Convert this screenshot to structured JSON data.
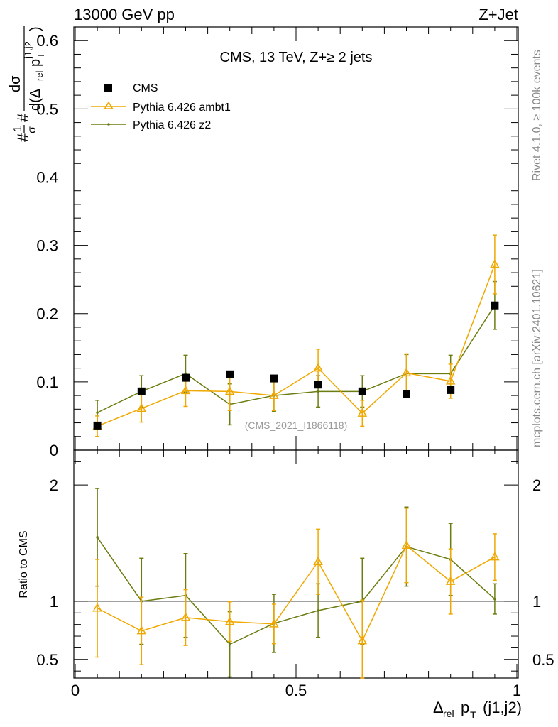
{
  "header": {
    "left": "13000 GeV pp",
    "right": "Z+Jet"
  },
  "side_labels": {
    "rivet": "Rivet 4.1.0, ≥ 100k events",
    "mcplots": "mcplots.cern.ch [arXiv:2401.10621]"
  },
  "chart_data": {
    "type": "scatter",
    "title": "CMS, 13 TeV, Z+≥ 2 jets",
    "watermark": "(CMS_2021_I1866118)",
    "xlabel": "Δrel pT (j1,j2)",
    "xlabel_parts": {
      "delta": "Δ",
      "rel": "rel",
      "p": "p",
      "T": "T",
      "suffix": "(j1,j2)"
    },
    "ylabel": "1/σ dσ/d(Δrel pT j1,j2)",
    "ylabel_parts": {
      "hash": "#",
      "one": "1",
      "sigma": "σ",
      "dsigma": "dσ",
      "denom": "d(Δ",
      "rel": "rel",
      "p": "p",
      "T": "T",
      "sup": "j1,j2",
      "close": ")"
    },
    "ratio_ylabel": "Ratio to CMS",
    "xlim": [
      0,
      1
    ],
    "ylim": [
      0,
      0.62
    ],
    "ratio_ylim": [
      0.34,
      2.3
    ],
    "x_ticks": [
      {
        "v": 0,
        "label": "0"
      },
      {
        "v": 0.5,
        "label": "0.5"
      },
      {
        "v": 1,
        "label": "1"
      }
    ],
    "y_ticks": [
      {
        "v": 0,
        "label": "0"
      },
      {
        "v": 0.1,
        "label": "0.1"
      },
      {
        "v": 0.2,
        "label": "0.2"
      },
      {
        "v": 0.3,
        "label": "0.3"
      },
      {
        "v": 0.4,
        "label": "0.4"
      },
      {
        "v": 0.5,
        "label": "0.5"
      },
      {
        "v": 0.6,
        "label": "0.6"
      }
    ],
    "ratio_ticks": [
      {
        "v": 0.5,
        "label": "0.5"
      },
      {
        "v": 1,
        "label": "1"
      },
      {
        "v": 2,
        "label": "2"
      }
    ],
    "x": [
      0.05,
      0.15,
      0.25,
      0.35,
      0.45,
      0.55,
      0.65,
      0.75,
      0.85,
      0.95
    ],
    "series": [
      {
        "name": "CMS",
        "color": "#000000",
        "marker": "square",
        "values": [
          0.036,
          0.086,
          0.106,
          0.111,
          0.105,
          0.096,
          0.086,
          0.082,
          0.088,
          0.212
        ],
        "errors": [
          0.002,
          0.002,
          0.002,
          0.002,
          0.002,
          0.002,
          0.002,
          0.002,
          0.002,
          0.003
        ]
      },
      {
        "name": "Pythia 6.426 ambt1",
        "color": "#f0a800",
        "marker": "triangle",
        "values": [
          0.035,
          0.061,
          0.087,
          0.086,
          0.08,
          0.12,
          0.054,
          0.113,
          0.101,
          0.272
        ],
        "errors": [
          0.015,
          0.02,
          0.023,
          0.028,
          0.022,
          0.028,
          0.019,
          0.028,
          0.025,
          0.043
        ],
        "ratio": [
          0.94,
          0.745,
          0.86,
          0.825,
          0.805,
          1.34,
          0.66,
          1.48,
          1.17,
          1.38
        ],
        "ratio_errors": [
          0.42,
          0.29,
          0.24,
          0.17,
          0.17,
          0.28,
          0.35,
          0.32,
          0.28,
          0.2
        ]
      },
      {
        "name": "Pythia 6.426 z2",
        "color": "#6b7d10",
        "marker": "dot",
        "values": [
          0.055,
          0.086,
          0.112,
          0.067,
          0.08,
          0.086,
          0.086,
          0.112,
          0.112,
          0.212
        ],
        "errors": [
          0.018,
          0.023,
          0.027,
          0.03,
          0.023,
          0.023,
          0.023,
          0.028,
          0.027,
          0.035
        ],
        "ratio": [
          1.55,
          1.0,
          1.05,
          0.63,
          0.81,
          0.92,
          1.0,
          1.47,
          1.36,
          1.02
        ],
        "ratio_errors": [
          0.42,
          0.37,
          0.36,
          0.28,
          0.25,
          0.23,
          0.37,
          0.34,
          0.31,
          0.13
        ]
      }
    ],
    "legend": [
      "CMS",
      "Pythia 6.426 ambt1",
      "Pythia 6.426 z2"
    ]
  }
}
